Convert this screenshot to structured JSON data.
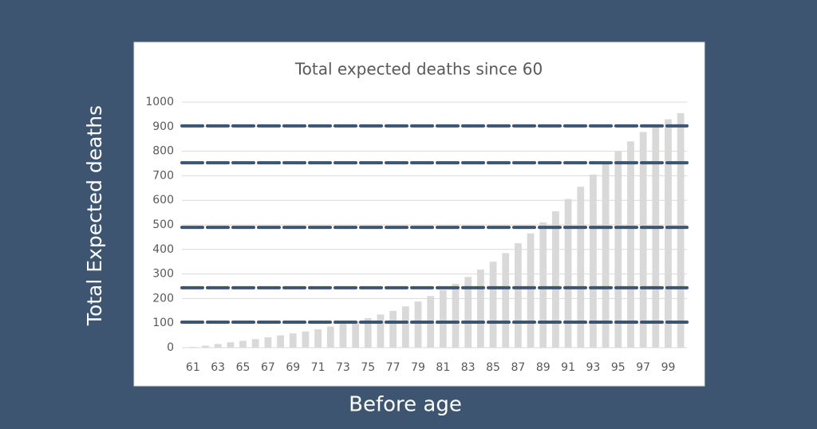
{
  "chart_data": {
    "type": "bar",
    "title": "Total expected deaths since 60",
    "x_label": "Before age",
    "y_label": "Total Expected deaths",
    "categories": [
      61,
      null,
      63,
      null,
      65,
      null,
      67,
      null,
      69,
      null,
      71,
      null,
      73,
      null,
      75,
      null,
      77,
      null,
      79,
      null,
      81,
      null,
      83,
      null,
      85,
      null,
      87,
      null,
      89,
      null,
      91,
      null,
      93,
      null,
      95,
      null,
      97,
      null,
      99,
      null
    ],
    "values": [
      3,
      8,
      15,
      22,
      28,
      35,
      42,
      50,
      58,
      66,
      75,
      86,
      97,
      108,
      120,
      135,
      150,
      168,
      188,
      210,
      235,
      260,
      288,
      318,
      350,
      385,
      425,
      465,
      510,
      555,
      605,
      655,
      705,
      755,
      800,
      840,
      878,
      905,
      930,
      955
    ],
    "color": "#d9d9d9",
    "ylim": [
      0,
      1000
    ],
    "yticks": [
      0,
      100,
      200,
      300,
      400,
      500,
      600,
      700,
      800,
      900,
      1000
    ],
    "grid": true,
    "reference_lines": [
      903,
      753,
      490,
      244,
      104
    ],
    "reference_color": "#3d5570"
  }
}
